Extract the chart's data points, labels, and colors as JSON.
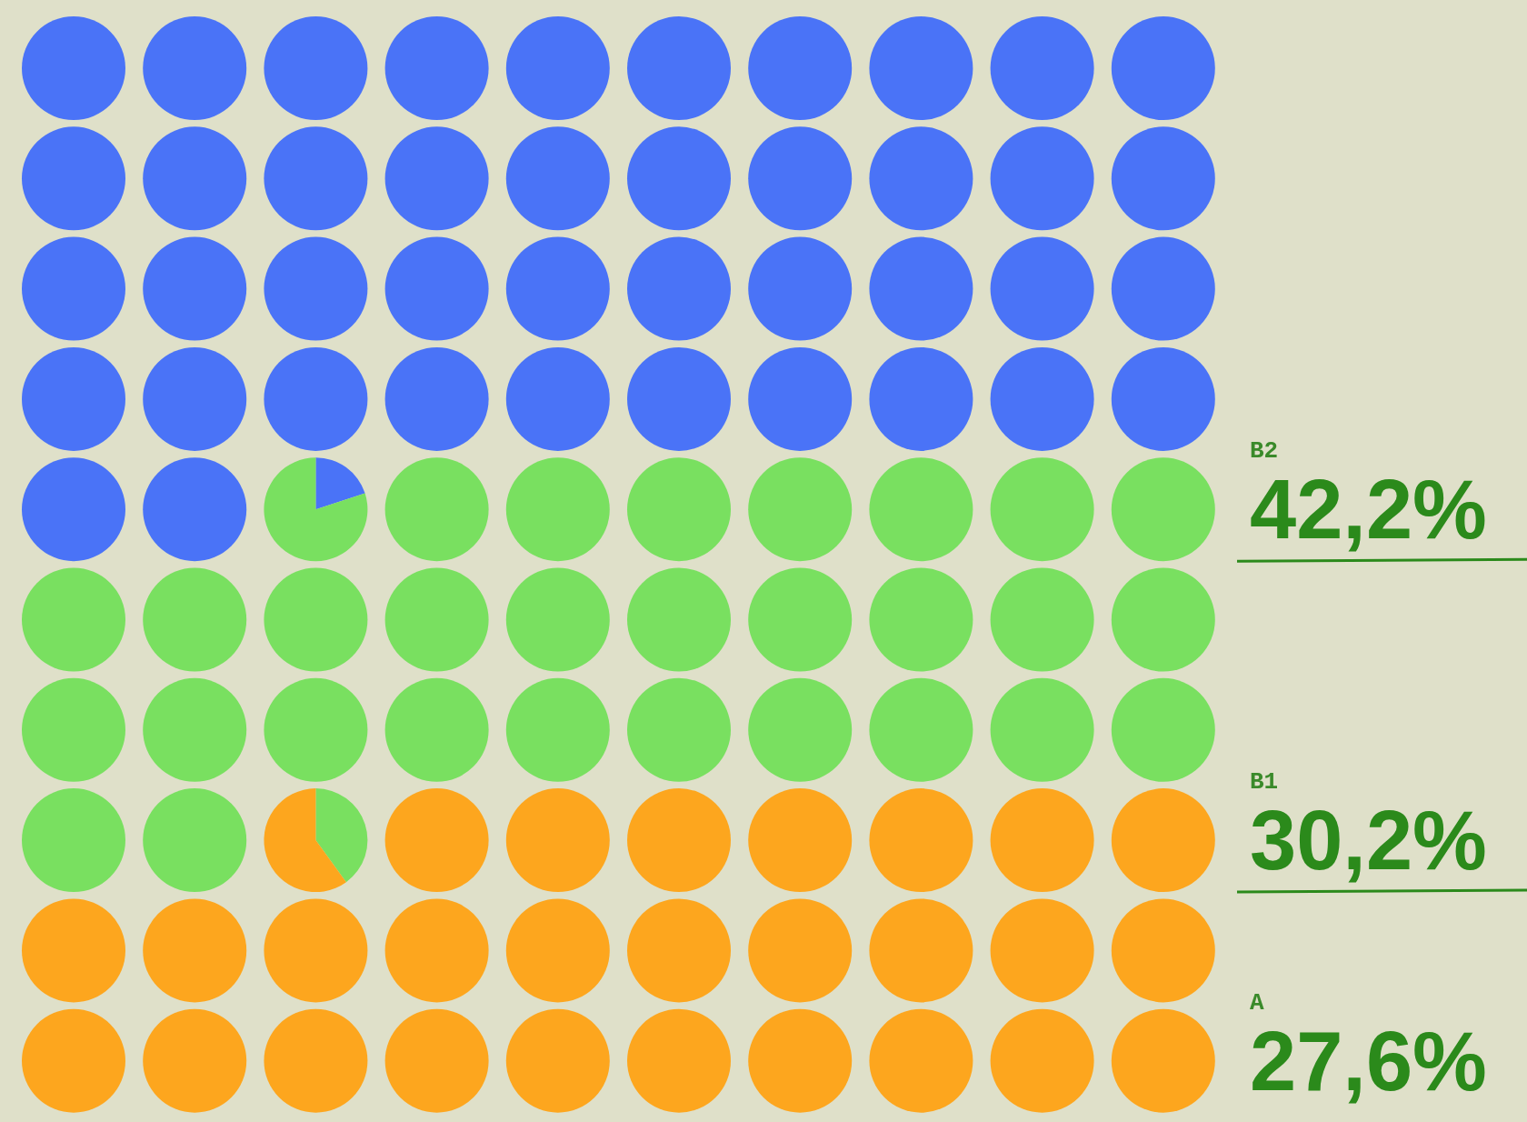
{
  "chart_data": {
    "type": "other",
    "categories": [
      "B2",
      "B1",
      "A"
    ],
    "values": [
      42.2,
      30.2,
      27.6
    ],
    "colors": [
      "#4a73f7",
      "#79e060",
      "#fda61e"
    ],
    "value_labels": [
      "42,2%",
      "30,2%",
      "27,6%"
    ]
  }
}
